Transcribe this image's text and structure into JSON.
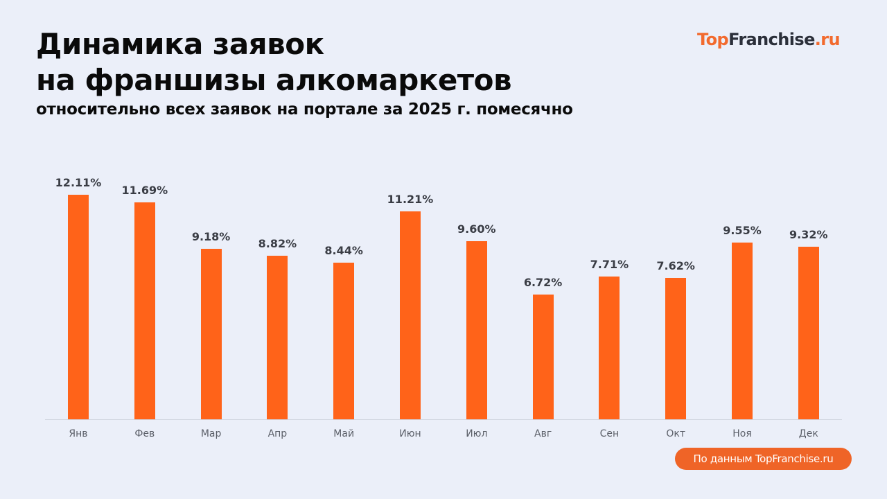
{
  "header": {
    "title_line1": "Динамика заявок",
    "title_line2": "на франшизы алкомаркетов",
    "subtitle": "относительно всех заявок на портале за 2025 г. помесячно"
  },
  "logo": {
    "part1": "Top",
    "part2": "Franchise",
    "part3": ".ru"
  },
  "source": {
    "label": "По данным TopFranchise.ru"
  },
  "colors": {
    "background": "#ebeff9",
    "bar": "#ff6319",
    "badge": "#ef6427",
    "value_label": "#3a3d45",
    "axis_label": "#5b5f68"
  },
  "chart_data": {
    "type": "bar",
    "title": "Динамика заявок на франшизы алкомаркетов",
    "subtitle": "относительно всех заявок на портале за 2025 г. помесячно",
    "xlabel": "",
    "ylabel": "",
    "categories": [
      "Янв",
      "Фев",
      "Мар",
      "Апр",
      "Май",
      "Июн",
      "Июл",
      "Авг",
      "Сен",
      "Окт",
      "Ноя",
      "Дек"
    ],
    "values": [
      12.11,
      11.69,
      9.18,
      8.82,
      8.44,
      11.21,
      9.6,
      6.72,
      7.71,
      7.62,
      9.55,
      9.32
    ],
    "value_labels": [
      "12.11%",
      "11.69%",
      "9.18%",
      "8.82%",
      "8.44%",
      "11.21%",
      "9.60%",
      "6.72%",
      "7.71%",
      "7.62%",
      "9.55%",
      "9.32%"
    ],
    "unit": "%",
    "ylim": [
      0,
      12.11
    ],
    "grid": false,
    "legend": null
  }
}
